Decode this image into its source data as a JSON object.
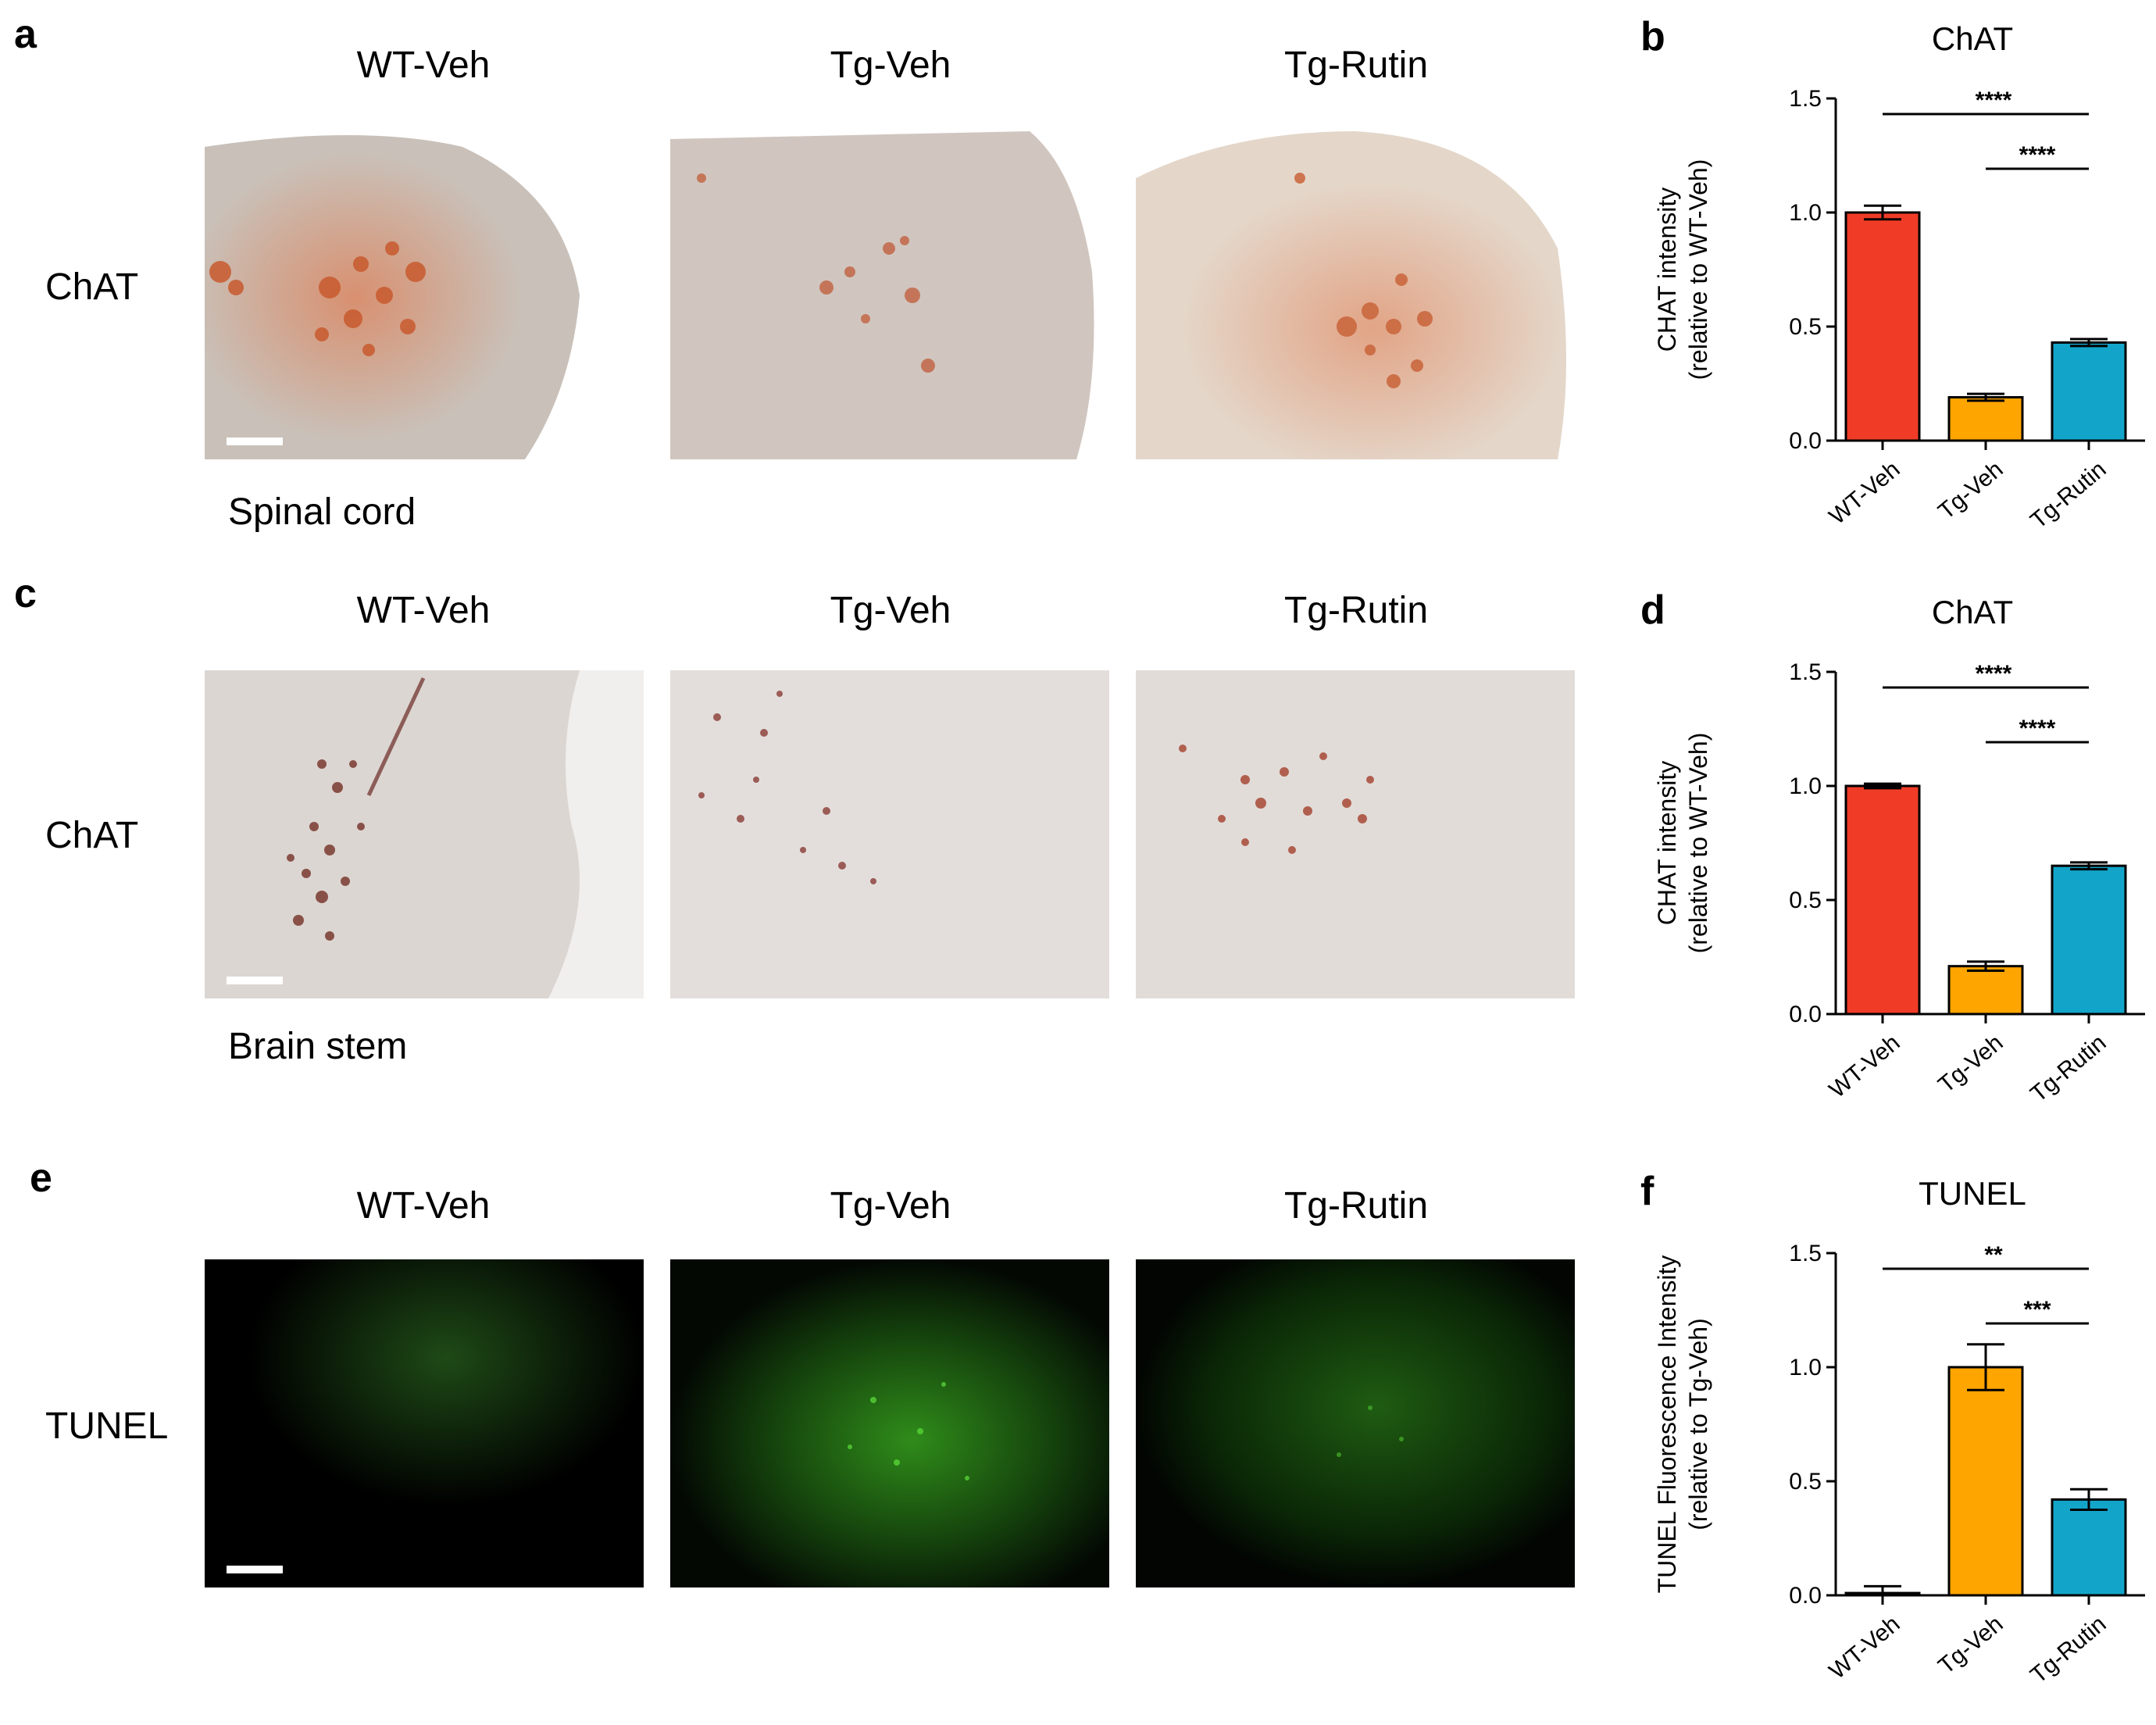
{
  "groups": [
    "WT-Veh",
    "Tg-Veh",
    "Tg-Rutin"
  ],
  "panels": {
    "a": {
      "letter": "a",
      "row_label": "ChAT",
      "region": "Spinal cord"
    },
    "c": {
      "letter": "c",
      "row_label": "ChAT",
      "region": "Brain stem"
    },
    "e": {
      "letter": "e",
      "row_label": "TUNEL",
      "region": ""
    }
  },
  "colors": {
    "WT-Veh": "#f03c27",
    "Tg-Veh": "#ffa500",
    "Tg-Rutin": "#13a5c9"
  },
  "chart_data": [
    {
      "id": "b",
      "letter": "b",
      "type": "bar",
      "title": "ChAT",
      "ylabel": [
        "CHAT intensity",
        "(relative to WT-Veh)"
      ],
      "categories": [
        "WT-Veh",
        "Tg-Veh",
        "Tg-Rutin"
      ],
      "values": [
        1.0,
        0.19,
        0.43
      ],
      "errors": [
        0.03,
        0.015,
        0.015
      ],
      "ylim": [
        0,
        1.5
      ],
      "yticks": [
        "0.0",
        "0.5",
        "1.0",
        "1.5"
      ],
      "significance": [
        {
          "from": "WT-Veh",
          "to": "Tg-Rutin",
          "label": "****"
        },
        {
          "from": "Tg-Veh",
          "to": "Tg-Rutin",
          "label": "****"
        }
      ]
    },
    {
      "id": "d",
      "letter": "d",
      "type": "bar",
      "title": "ChAT",
      "ylabel": [
        "CHAT intensity",
        "(relative to WT-Veh)"
      ],
      "categories": [
        "WT-Veh",
        "Tg-Veh",
        "Tg-Rutin"
      ],
      "values": [
        1.0,
        0.21,
        0.65
      ],
      "errors": [
        0.01,
        0.02,
        0.015
      ],
      "ylim": [
        0,
        1.5
      ],
      "yticks": [
        "0.0",
        "0.5",
        "1.0",
        "1.5"
      ],
      "significance": [
        {
          "from": "WT-Veh",
          "to": "Tg-Rutin",
          "label": "****"
        },
        {
          "from": "Tg-Veh",
          "to": "Tg-Rutin",
          "label": "****"
        }
      ]
    },
    {
      "id": "f",
      "letter": "f",
      "type": "bar",
      "title": "TUNEL",
      "ylabel": [
        "TUNEL Fluorescence Intensity",
        "(relative to Tg-Veh)"
      ],
      "categories": [
        "WT-Veh",
        "Tg-Veh",
        "Tg-Rutin"
      ],
      "values": [
        0.01,
        1.0,
        0.42
      ],
      "errors": [
        0.03,
        0.1,
        0.045
      ],
      "ylim": [
        0,
        1.5
      ],
      "yticks": [
        "0.0",
        "0.5",
        "1.0",
        "1.5"
      ],
      "significance": [
        {
          "from": "WT-Veh",
          "to": "Tg-Rutin",
          "label": "**"
        },
        {
          "from": "Tg-Veh",
          "to": "Tg-Rutin",
          "label": "***"
        }
      ]
    }
  ]
}
